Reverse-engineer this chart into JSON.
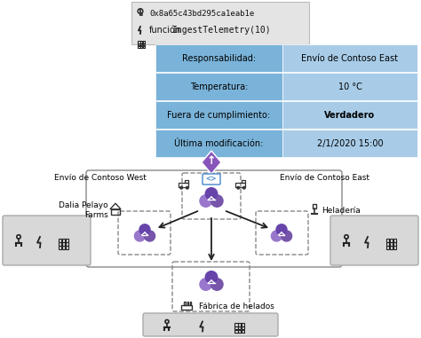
{
  "bg_color": "#ffffff",
  "table_left_bg": "#7ab3d9",
  "table_right_bg": "#a8cce8",
  "table_border": "#ffffff",
  "popup_bg": "#e0e0e0",
  "popup_border": "#cccccc",
  "node_box_bg": "#d8d8d8",
  "node_box_border": "#999999",
  "dashed_box_color": "#888888",
  "arrow_color": "#222222",
  "text_color": "#000000",
  "popup_rows": [
    [
      "Responsabilidad:",
      "Envío de Contoso East"
    ],
    [
      "Temperatura:",
      "10 °C"
    ],
    [
      "Fuera de cumplimiento:",
      "Verdadero"
    ],
    [
      "Última modificación:",
      "2/1/2020 15:00"
    ]
  ],
  "popup_header_line1": "0x8a65c43bd295ca1eab1e",
  "popup_header_line2_prefix": "función",
  "popup_header_line2_code": "IngestTelemetry(10)",
  "label_west": "Envío de Contoso West",
  "label_east": "Envío de Contoso East",
  "label_left": "Dalia Pelayo\nFarms",
  "label_right": "Heladería",
  "label_bottom": "Fábrica de helados",
  "purple_main": "#7755aa",
  "purple_light": "#9977cc",
  "purple_dark": "#6644aa",
  "diamond_bg": "#8855bb",
  "code_blue": "#4488cc"
}
